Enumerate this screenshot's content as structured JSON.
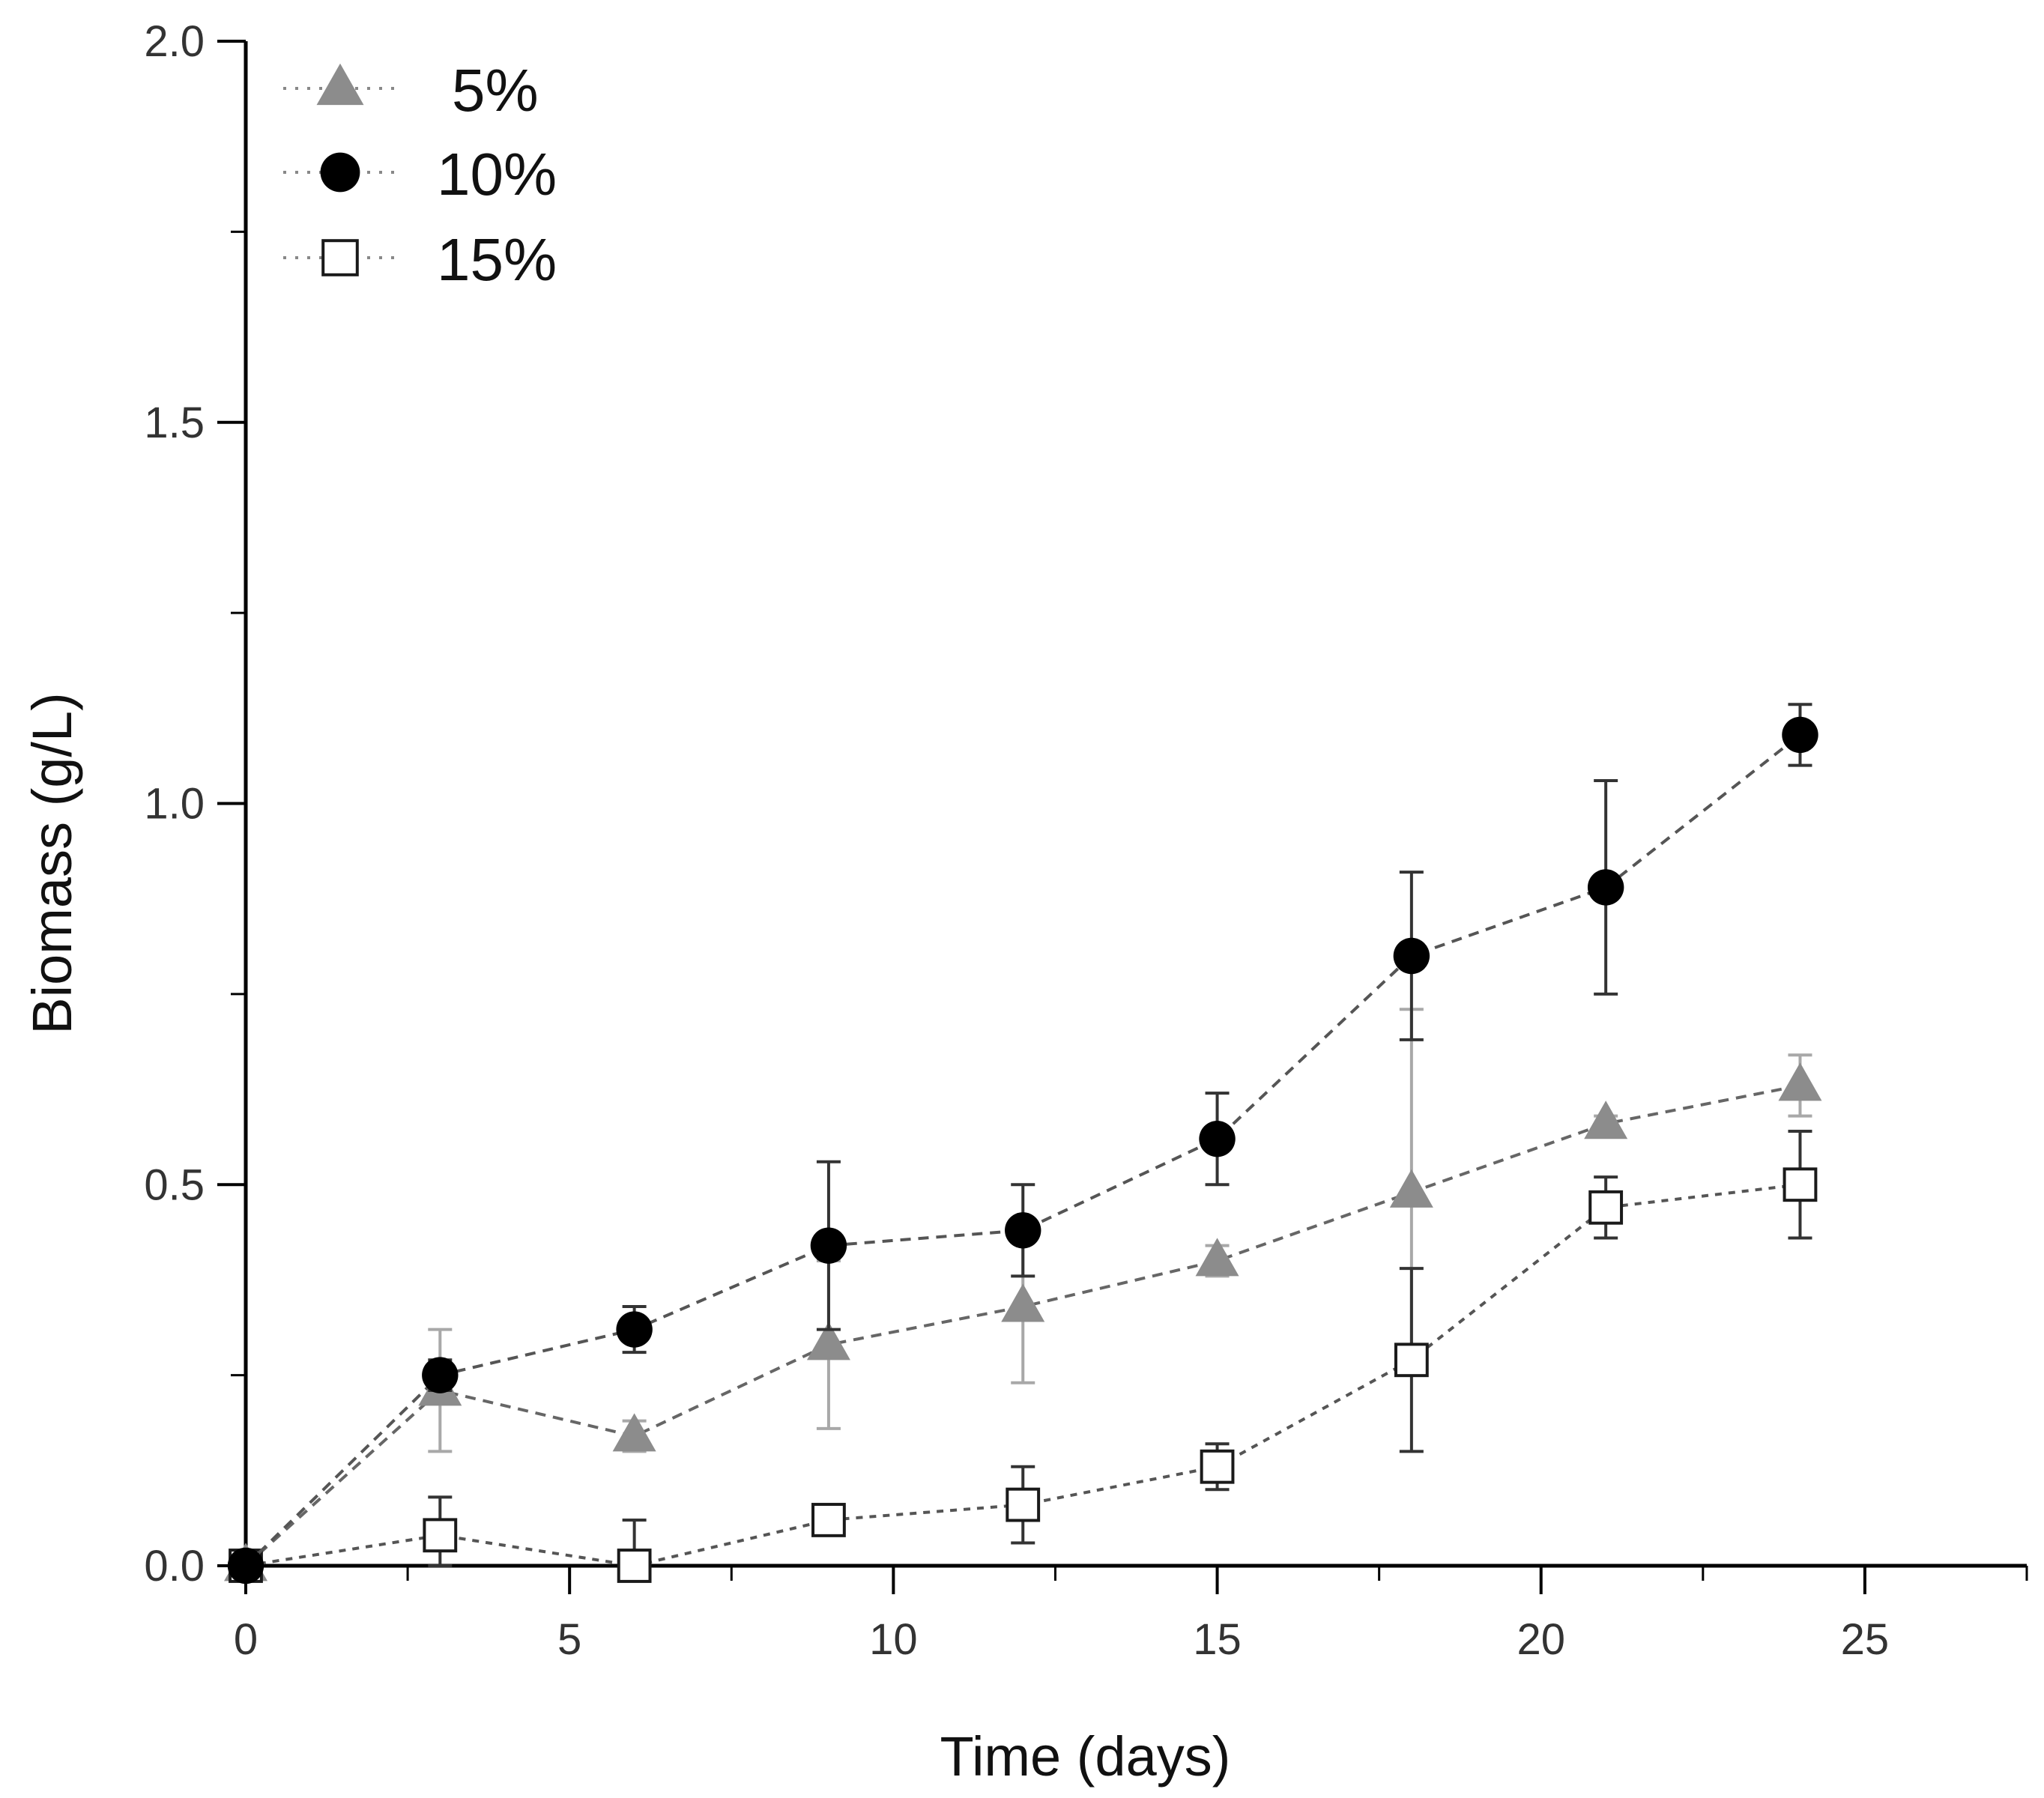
{
  "chart_data": {
    "type": "line",
    "title": "",
    "xlabel": "Time (days)",
    "ylabel": "Biomass (g/L)",
    "xlim": [
      0,
      27.5
    ],
    "ylim": [
      0,
      2.0
    ],
    "xticks": [
      0,
      5,
      10,
      15,
      20,
      25
    ],
    "xtick_labels": [
      "0",
      "5",
      "10",
      "15",
      "20",
      "25"
    ],
    "yticks": [
      0,
      0.5,
      1.0,
      1.5,
      2.0
    ],
    "ytick_labels": [
      "0.0",
      "0.5",
      "1.0",
      "1.5",
      "2.0"
    ],
    "legend_position": "top-left",
    "grid": false,
    "series": [
      {
        "name": "5%",
        "marker": "triangle",
        "color": "#8c8c8c",
        "line_style": "dashed",
        "x": [
          0,
          3,
          6,
          9,
          12,
          15,
          18,
          21,
          24
        ],
        "y": [
          0.0,
          0.23,
          0.17,
          0.29,
          0.34,
          0.4,
          0.49,
          0.58,
          0.63
        ],
        "err": [
          0.01,
          0.08,
          0.02,
          0.11,
          0.1,
          0.02,
          0.24,
          0.01,
          0.04
        ]
      },
      {
        "name": "10%",
        "marker": "circle-filled",
        "color": "#000000",
        "line_style": "dashed",
        "x": [
          0,
          3,
          6,
          9,
          12,
          15,
          18,
          21,
          24
        ],
        "y": [
          0.0,
          0.25,
          0.31,
          0.42,
          0.44,
          0.56,
          0.8,
          0.89,
          1.09
        ],
        "err": [
          0.01,
          0.02,
          0.03,
          0.11,
          0.06,
          0.06,
          0.11,
          0.14,
          0.04
        ]
      },
      {
        "name": "15%",
        "marker": "square-open",
        "color": "#1a1a1a",
        "line_style": "dotted",
        "x": [
          0,
          3,
          6,
          9,
          12,
          15,
          18,
          21,
          24
        ],
        "y": [
          0.0,
          0.04,
          0.0,
          0.06,
          0.08,
          0.13,
          0.27,
          0.47,
          0.5
        ],
        "err": [
          0.01,
          0.05,
          0.06,
          0.01,
          0.05,
          0.03,
          0.12,
          0.04,
          0.07
        ]
      }
    ]
  }
}
